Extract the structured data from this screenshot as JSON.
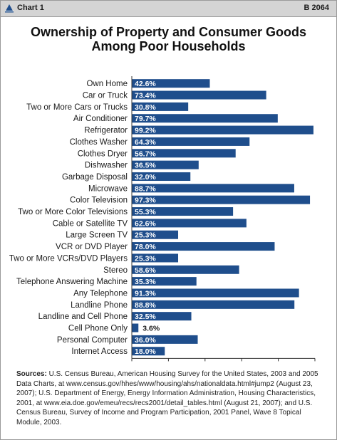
{
  "header": {
    "chart_number": "Chart 1",
    "report_number": "B 2064",
    "logo_icon": "heritage-bell-icon"
  },
  "colors": {
    "bar": "#1f4e8c",
    "header_bg": "#d4d4d4"
  },
  "chart_data": {
    "type": "bar",
    "orientation": "horizontal",
    "title": "Ownership of Property and Consumer Goods Among Poor Households",
    "title_lines": [
      "Ownership of Property and Consumer Goods",
      "Among Poor Households"
    ],
    "categories": [
      "Own Home",
      "Car or Truck",
      "Two or More Cars or Trucks",
      "Air Conditioner",
      "Refrigerator",
      "Clothes Washer",
      "Clothes Dryer",
      "Dishwasher",
      "Garbage Disposal",
      "Microwave",
      "Color Television",
      "Two or More Color Televisions",
      "Cable or Satellite TV",
      "Large Screen TV",
      "VCR or DVD Player",
      "Two or More VCRs/DVD Players",
      "Stereo",
      "Telephone Answering Machine",
      "Any Telephone",
      "Landline Phone",
      "Landline and Cell Phone",
      "Cell Phone Only",
      "Personal Computer",
      "Internet Access"
    ],
    "values": [
      42.6,
      73.4,
      30.8,
      79.7,
      99.2,
      64.3,
      56.7,
      36.5,
      32.0,
      88.7,
      97.3,
      55.3,
      62.6,
      25.3,
      78.0,
      25.3,
      58.6,
      35.3,
      91.3,
      88.8,
      32.5,
      3.6,
      36.0,
      18.0
    ],
    "value_labels": [
      "42.6%",
      "73.4%",
      "30.8%",
      "79.7%",
      "99.2%",
      "64.3%",
      "56.7%",
      "36.5%",
      "32.0%",
      "88.7%",
      "97.3%",
      "55.3%",
      "62.6%",
      "25.3%",
      "78.0%",
      "25.3%",
      "58.6%",
      "35.3%",
      "91.3%",
      "88.8%",
      "32.5%",
      "3.6%",
      "36.0%",
      "18.0%"
    ],
    "xlim": [
      0,
      100
    ],
    "x_ticks": [
      "0",
      "20%",
      "40%",
      "60%",
      "80%",
      "100%"
    ],
    "grid": false,
    "xlabel": "",
    "ylabel": ""
  },
  "sources": {
    "label": "Sources:",
    "text": "U.S. Census Bureau, American Housing Survey for the United States, 2003 and 2005 Data Charts, at www.census.gov/hhes/www/housing/ahs/nationaldata.html#jump2 (August 23, 2007); U.S. Department of Energy, Energy Information Administration, Housing Characteristics, 2001, at www.eia.doe.gov/emeu/recs/recs2001/detail_tables.html (August 21, 2007); and U.S. Census Bureau, Survey of Income and Program Participation, 2001 Panel, Wave 8 Topical Module, 2003."
  }
}
